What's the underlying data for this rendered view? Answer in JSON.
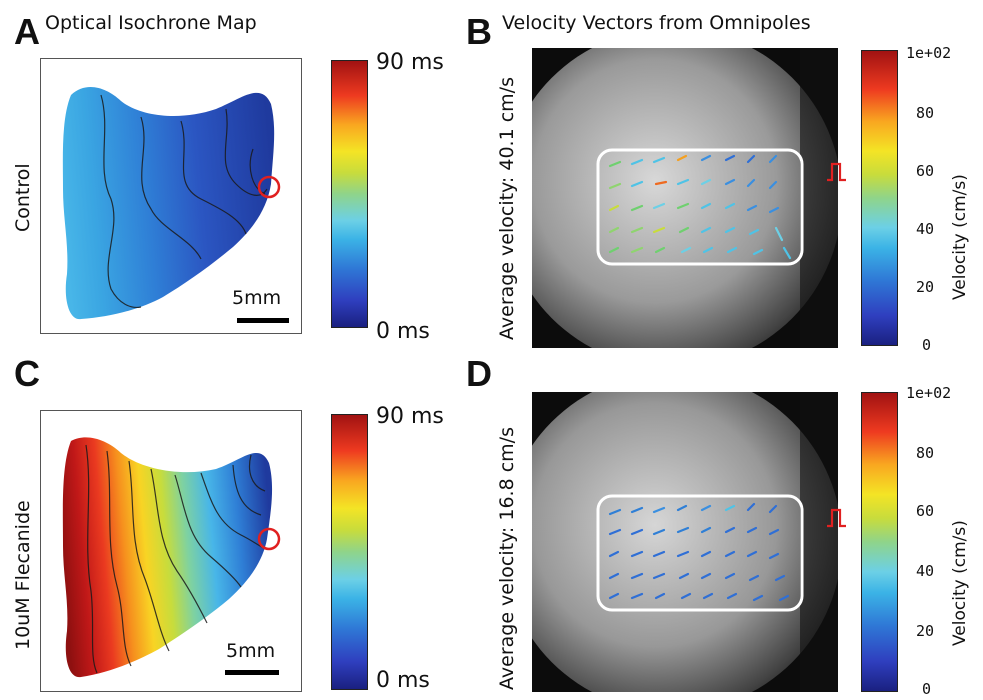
{
  "panels": {
    "A": {
      "letter": "A",
      "title": "Optical Isochrone Map",
      "row_label": "Control",
      "scale_label": "5mm"
    },
    "B": {
      "letter": "B",
      "title": "Velocity Vectors from Omnipoles",
      "avg_velocity": "Average velocity: 40.1 cm/s"
    },
    "C": {
      "letter": "C",
      "row_label": "10uM Flecanide",
      "scale_label": "5mm"
    },
    "D": {
      "letter": "D",
      "avg_velocity": "Average velocity: 16.8 cm/s"
    }
  },
  "isochrone_colorbar": {
    "top_label": "90 ms",
    "bottom_label": "0 ms"
  },
  "velocity_colorbar": {
    "top_label": "1e+02",
    "ticks": [
      "80",
      "60",
      "40",
      "20",
      "0"
    ],
    "axis_label": "Velocity (cm/s)"
  },
  "colors": {
    "pacing_marker": "#e02020",
    "roi_box": "#ffffff",
    "frame": "#555555"
  }
}
